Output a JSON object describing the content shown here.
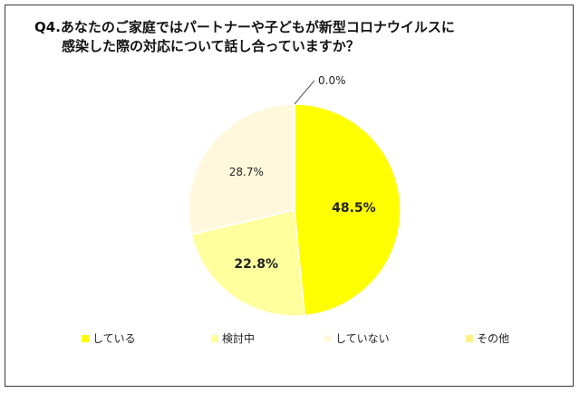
{
  "title_line1": "Q4.あなたのご家庭ではパートナーや子どもが新型コロナウイルスに",
  "title_line2": "感染した際の対応について話し合っていますか？",
  "chart_data": {
    "type": "pie",
    "categories": [
      "している",
      "検討中",
      "していない",
      "その他"
    ],
    "values": [
      48.5,
      22.8,
      28.7,
      0.0
    ],
    "labels": [
      "48.5%",
      "22.8%",
      "28.7%",
      "0.0%"
    ],
    "colors": [
      "#ffff00",
      "#ffff9e",
      "#fff8dc",
      "#ffef8a"
    ],
    "start": "12 o'clock",
    "direction": "clockwise",
    "legend_position": "bottom"
  }
}
